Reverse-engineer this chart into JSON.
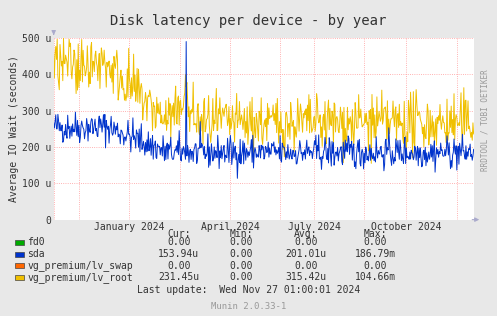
{
  "title": "Disk latency per device - by year",
  "ylabel": "Average IO Wait (seconds)",
  "bg_color": "#e8e8e8",
  "plot_bg_color": "#ffffff",
  "watermark_text": "RRDTOOL / TOBI OETIKER",
  "munin_text": "Munin 2.0.33-1",
  "legend_items": [
    {
      "label": "fd0",
      "color": "#00aa00"
    },
    {
      "label": "sda",
      "color": "#0033cc"
    },
    {
      "label": "vg_premium/lv_swap",
      "color": "#ff6600"
    },
    {
      "label": "vg_premium/lv_root",
      "color": "#f0c000"
    }
  ],
  "table_headers": [
    "Cur:",
    "Min:",
    "Avg:",
    "Max:"
  ],
  "table_rows": [
    [
      "fd0",
      "0.00",
      "0.00",
      "0.00",
      "0.00"
    ],
    [
      "sda",
      "153.94u",
      "0.00",
      "201.01u",
      "186.79m"
    ],
    [
      "vg_premium/lv_swap",
      "0.00",
      "0.00",
      "0.00",
      "0.00"
    ],
    [
      "vg_premium/lv_root",
      "231.45u",
      "0.00",
      "315.42u",
      "104.66m"
    ]
  ],
  "last_update": "Last update:  Wed Nov 27 01:00:01 2024",
  "ylim": [
    0,
    500
  ],
  "ytick_values": [
    0,
    100,
    200,
    300,
    400,
    500
  ],
  "ytick_labels": [
    "0",
    "100 u",
    "200 u",
    "300 u",
    "400 u",
    "500 u"
  ],
  "xtick_positions": [
    0.18,
    0.42,
    0.62,
    0.84
  ],
  "xtick_labels": [
    "January 2024",
    "April 2024",
    "July 2024",
    "October 2024"
  ],
  "vgrid_positions": [
    0.0,
    0.06,
    0.18,
    0.3,
    0.42,
    0.54,
    0.62,
    0.74,
    0.84,
    0.96,
    1.0
  ],
  "n_points": 600,
  "seed": 42
}
